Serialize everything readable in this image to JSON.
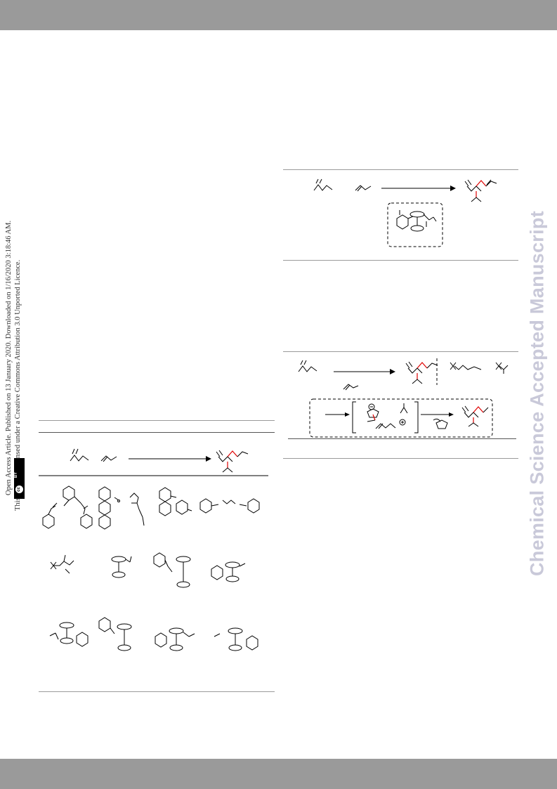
{
  "journal": {
    "watermark": "Chemical Science Accepted Manuscript",
    "colors": {
      "band": "#9a9a9a",
      "watermark": "#c9c9d9",
      "highlight_bond": "#e00000"
    }
  },
  "license_strip": {
    "line1": "Open Access Article. Published on 13 January 2020. Downloaded on 1/16/2020 3:18:46 AM.",
    "line2": "This article is licensed under a Creative Commons Attribution 3.0 Unported Licence.",
    "badge_icon": "creative-commons-by-icon",
    "badge_label": "BY"
  }
}
